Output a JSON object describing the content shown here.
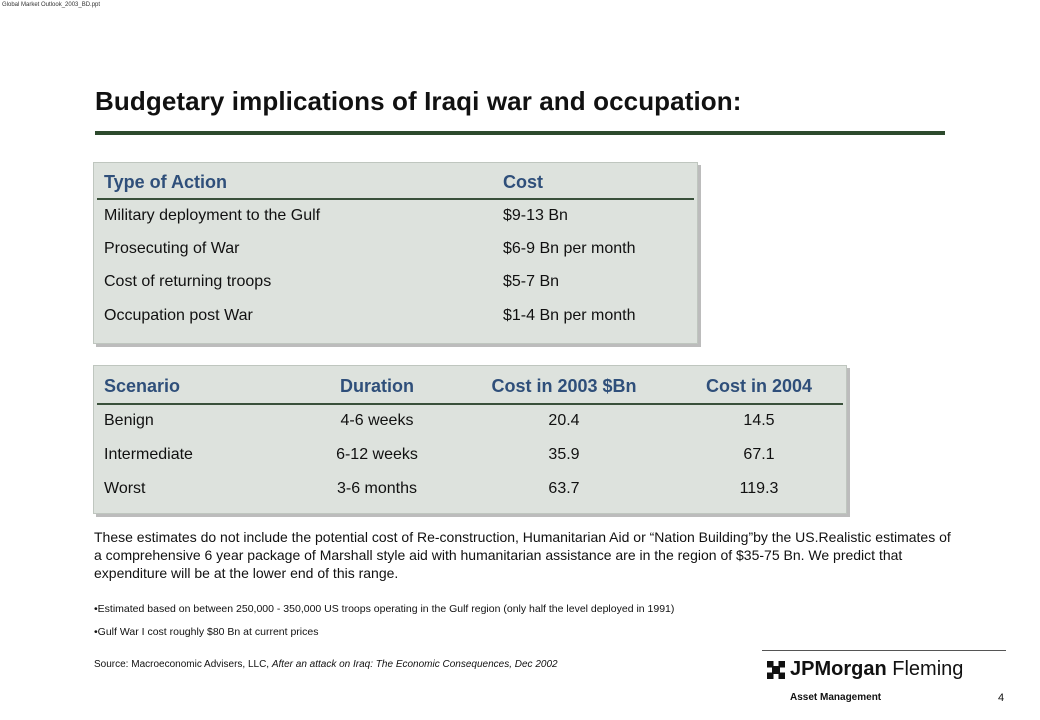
{
  "header": {
    "filename": "Global Market Outlook_2003_BD.ppt",
    "title": "Budgetary implications of Iraqi war and occupation:"
  },
  "table1": {
    "columns": [
      "Type of Action",
      "Cost"
    ],
    "rows": [
      [
        "Military deployment to the Gulf",
        "$9-13 Bn"
      ],
      [
        "Prosecuting of War",
        "$6-9 Bn per month"
      ],
      [
        "Cost of returning troops",
        "$5-7 Bn"
      ],
      [
        "Occupation post War",
        "$1-4 Bn per month"
      ]
    ]
  },
  "table2": {
    "columns": [
      "Scenario",
      "Duration",
      "Cost in 2003 $Bn",
      "Cost in 2004"
    ],
    "rows": [
      [
        "Benign",
        "4-6 weeks",
        "20.4",
        "14.5"
      ],
      [
        "Intermediate",
        "6-12 weeks",
        "35.9",
        "67.1"
      ],
      [
        "Worst",
        "3-6 months",
        "63.7",
        "119.3"
      ]
    ]
  },
  "notes": {
    "paragraph": "These estimates do not include the potential cost of Re-construction, Humanitarian Aid or “Nation Building”by the US.Realistic estimates of a comprehensive 6 year package of Marshall style aid with humanitarian assistance are in the region of $35-75 Bn. We predict that expenditure will be at the lower end of this range.",
    "bullets": [
      "•Estimated based on between 250,000 - 350,000 US troops operating in the Gulf region (only half the level deployed in 1991)",
      "•Gulf War I cost roughly $80 Bn at current prices"
    ],
    "source_prefix": "Source: Macroeconomic Advisers, LLC,",
    "source_title": "After an attack on Iraq: The Economic Consequences, Dec 2002"
  },
  "footer": {
    "logo_bold": "JPMorgan",
    "logo_rest": "Fleming",
    "logo_sub": "Asset Management",
    "page_number": "4"
  }
}
